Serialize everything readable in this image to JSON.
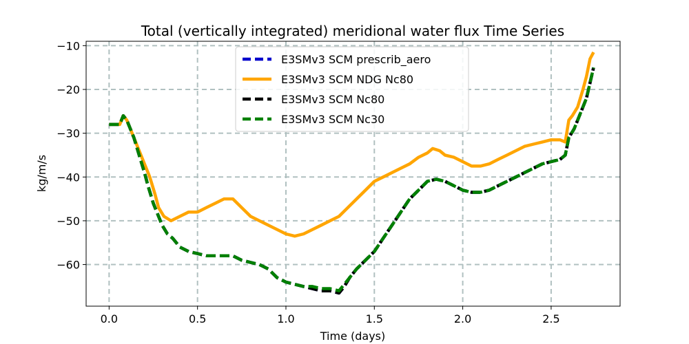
{
  "chart_data": {
    "type": "line",
    "title": "Total (vertically integrated) meridional water flux Time Series",
    "xlabel": "Time (days)",
    "ylabel": "kg/m/s",
    "xlim": [
      -0.13,
      2.89
    ],
    "ylim": [
      -69.5,
      -9
    ],
    "xticks": [
      0.0,
      0.5,
      1.0,
      1.5,
      2.0,
      2.5
    ],
    "xtick_labels": [
      "0.0",
      "0.5",
      "1.0",
      "1.5",
      "2.0",
      "2.5"
    ],
    "yticks": [
      -60,
      -50,
      -40,
      -30,
      -20,
      -10
    ],
    "ytick_labels": [
      "−60",
      "−50",
      "−40",
      "−30",
      "−20",
      "−10"
    ],
    "grid": true,
    "legend_position": "top-center",
    "series": [
      {
        "name": "E3SMv3 SCM prescrib_aero",
        "color": "#0000cc",
        "style": "dashed",
        "x": [
          0.0,
          0.04,
          0.06,
          0.08,
          0.1,
          0.12,
          0.14,
          0.17,
          0.2,
          0.22,
          0.25,
          0.27,
          0.3,
          0.33,
          0.36,
          0.4,
          0.45,
          0.5,
          0.55,
          0.6,
          0.65,
          0.7,
          0.75,
          0.8,
          0.85,
          0.9,
          0.95,
          1.0,
          1.05,
          1.1,
          1.15,
          1.2,
          1.25,
          1.3,
          1.33,
          1.36,
          1.4,
          1.45,
          1.5,
          1.55,
          1.6,
          1.65,
          1.7,
          1.75,
          1.8,
          1.85,
          1.9,
          1.95,
          2.0,
          2.05,
          2.1,
          2.15,
          2.2,
          2.25,
          2.3,
          2.35,
          2.4,
          2.45,
          2.5,
          2.55,
          2.58,
          2.6,
          2.63,
          2.66,
          2.7,
          2.74
        ],
        "y": [
          -28,
          -28,
          -28,
          -26,
          -27,
          -29,
          -31,
          -35,
          -39,
          -42,
          -46,
          -48,
          -51,
          -53,
          -54,
          -56,
          -57,
          -57.5,
          -58,
          -58,
          -58,
          -58,
          -59,
          -59.5,
          -60,
          -61,
          -63,
          -64,
          -64.5,
          -65,
          -65.5,
          -66,
          -66,
          -66.5,
          -65,
          -63,
          -61,
          -59,
          -57,
          -54,
          -51,
          -48,
          -45,
          -43,
          -41,
          -40.5,
          -41,
          -42,
          -43,
          -43.5,
          -43.5,
          -43,
          -42,
          -41,
          -40,
          -39,
          -38,
          -37,
          -36.5,
          -36,
          -35,
          -31,
          -29,
          -26,
          -22,
          -15
        ]
      },
      {
        "name": "E3SMv3 SCM NDG Nc80",
        "color": "#ffa500",
        "style": "solid",
        "x": [
          0.0,
          0.04,
          0.06,
          0.08,
          0.1,
          0.12,
          0.14,
          0.17,
          0.2,
          0.23,
          0.26,
          0.28,
          0.31,
          0.35,
          0.4,
          0.45,
          0.5,
          0.55,
          0.6,
          0.65,
          0.7,
          0.75,
          0.8,
          0.85,
          0.9,
          0.95,
          1.0,
          1.05,
          1.1,
          1.15,
          1.2,
          1.25,
          1.3,
          1.35,
          1.4,
          1.45,
          1.5,
          1.55,
          1.6,
          1.65,
          1.7,
          1.75,
          1.8,
          1.83,
          1.87,
          1.9,
          1.95,
          2.0,
          2.05,
          2.1,
          2.15,
          2.2,
          2.25,
          2.3,
          2.35,
          2.4,
          2.45,
          2.5,
          2.55,
          2.58,
          2.6,
          2.62,
          2.65,
          2.68,
          2.7,
          2.72,
          2.74
        ],
        "y": [
          -28,
          -28,
          -28,
          -26,
          -27,
          -29,
          -31,
          -34,
          -37,
          -40,
          -44,
          -47,
          -49,
          -50,
          -49,
          -48,
          -48,
          -47,
          -46,
          -45,
          -45,
          -47,
          -49,
          -50,
          -51,
          -52,
          -53,
          -53.5,
          -53,
          -52,
          -51,
          -50,
          -49,
          -47,
          -45,
          -43,
          -41,
          -40,
          -39,
          -38,
          -37,
          -35.5,
          -34.5,
          -33.5,
          -34,
          -35,
          -35.5,
          -36.5,
          -37.5,
          -37.5,
          -37,
          -36,
          -35,
          -34,
          -33,
          -32.5,
          -32,
          -31.5,
          -31.5,
          -32,
          -27,
          -26,
          -24,
          -20,
          -17,
          -13,
          -11.5
        ]
      },
      {
        "name": "E3SMv3 SCM Nc80",
        "color": "#000000",
        "style": "dashed",
        "x": [
          0.0,
          0.04,
          0.06,
          0.08,
          0.1,
          0.12,
          0.14,
          0.17,
          0.2,
          0.22,
          0.25,
          0.27,
          0.3,
          0.33,
          0.36,
          0.4,
          0.45,
          0.5,
          0.55,
          0.6,
          0.65,
          0.7,
          0.75,
          0.8,
          0.85,
          0.9,
          0.95,
          1.0,
          1.05,
          1.1,
          1.15,
          1.2,
          1.25,
          1.3,
          1.33,
          1.36,
          1.4,
          1.45,
          1.5,
          1.55,
          1.6,
          1.65,
          1.7,
          1.75,
          1.8,
          1.85,
          1.9,
          1.95,
          2.0,
          2.05,
          2.1,
          2.15,
          2.2,
          2.25,
          2.3,
          2.35,
          2.4,
          2.45,
          2.5,
          2.55,
          2.58,
          2.6,
          2.63,
          2.66,
          2.7,
          2.74
        ],
        "y": [
          -28,
          -28,
          -28,
          -26,
          -27,
          -29,
          -31,
          -35,
          -39,
          -42,
          -46,
          -48,
          -51,
          -53,
          -54,
          -56,
          -57,
          -57.5,
          -58,
          -58,
          -58,
          -58,
          -59,
          -59.5,
          -60,
          -61,
          -63,
          -64,
          -64.5,
          -65,
          -65.5,
          -66,
          -66,
          -66.5,
          -65,
          -63,
          -61,
          -59,
          -57,
          -54,
          -51,
          -48,
          -45,
          -43,
          -41,
          -40.5,
          -41,
          -42,
          -43,
          -43.5,
          -43.5,
          -43,
          -42,
          -41,
          -40,
          -39,
          -38,
          -37,
          -36.5,
          -36,
          -35,
          -31,
          -29,
          -26,
          -22,
          -15
        ]
      },
      {
        "name": "E3SMv3 SCM Nc30",
        "color": "#008000",
        "style": "dashed",
        "x": [
          0.0,
          0.04,
          0.06,
          0.08,
          0.1,
          0.12,
          0.14,
          0.17,
          0.2,
          0.22,
          0.25,
          0.27,
          0.3,
          0.33,
          0.36,
          0.4,
          0.45,
          0.5,
          0.55,
          0.6,
          0.65,
          0.7,
          0.75,
          0.8,
          0.85,
          0.9,
          0.95,
          1.0,
          1.05,
          1.1,
          1.15,
          1.2,
          1.25,
          1.3,
          1.33,
          1.36,
          1.4,
          1.45,
          1.5,
          1.55,
          1.6,
          1.65,
          1.7,
          1.75,
          1.8,
          1.85,
          1.9,
          1.95,
          2.0,
          2.05,
          2.1,
          2.15,
          2.2,
          2.25,
          2.3,
          2.35,
          2.4,
          2.45,
          2.5,
          2.55,
          2.58,
          2.6,
          2.63,
          2.66,
          2.7,
          2.74
        ],
        "y": [
          -28,
          -28,
          -28,
          -26,
          -27,
          -29,
          -31,
          -35,
          -39,
          -42,
          -46,
          -48,
          -51,
          -53,
          -54,
          -56,
          -57,
          -57.5,
          -58,
          -58,
          -58,
          -58,
          -59,
          -59.5,
          -60,
          -61,
          -63,
          -64,
          -64.5,
          -65,
          -65,
          -65.5,
          -65.5,
          -66,
          -64.5,
          -63,
          -61,
          -59,
          -57,
          -54,
          -51,
          -48,
          -45,
          -43,
          -41,
          -40.5,
          -41,
          -42,
          -43,
          -43.5,
          -43.5,
          -43,
          -42,
          -41,
          -40,
          -39,
          -38,
          -37,
          -36.5,
          -36,
          -35,
          -31,
          -29,
          -26,
          -22,
          -15
        ]
      }
    ]
  }
}
